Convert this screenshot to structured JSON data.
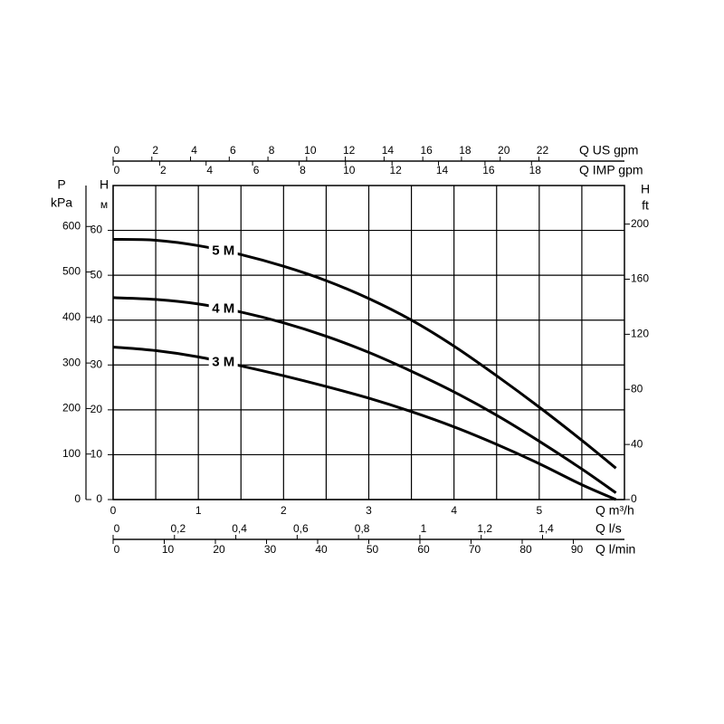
{
  "chart_data": {
    "type": "line",
    "x": [
      0,
      0.5,
      1,
      1.5,
      2,
      2.5,
      3,
      3.5,
      4,
      4.5,
      5,
      5.5,
      5.9
    ],
    "series": [
      {
        "name": "5 M",
        "color": "#000000",
        "values": [
          58,
          57.8,
          56.6,
          54.6,
          52,
          48.8,
          44.8,
          40,
          34.2,
          27.6,
          20.6,
          13.2,
          7
        ]
      },
      {
        "name": "4 M",
        "color": "#000000",
        "values": [
          45,
          44.6,
          43.6,
          41.8,
          39.4,
          36.4,
          32.8,
          28.6,
          24,
          18.8,
          13,
          6.8,
          1.5
        ]
      },
      {
        "name": "3 M",
        "color": "#000000",
        "values": [
          34,
          33.2,
          31.8,
          29.8,
          27.6,
          25.2,
          22.6,
          19.6,
          16.2,
          12.3,
          8,
          3.3,
          0
        ]
      }
    ],
    "xlabel": "Q m³/h",
    "xlim": [
      0,
      6
    ],
    "xticks": [
      0,
      1,
      2,
      3,
      4,
      5
    ],
    "x_minor_ticks": [
      0.5,
      1.5,
      2.5,
      3.5,
      4.5,
      5.5
    ],
    "ylabel": "H",
    "yunit": "м",
    "ylim": [
      0,
      70
    ],
    "yticks": [
      0,
      10,
      20,
      30,
      40,
      50,
      60
    ],
    "grid": true,
    "axes": [
      {
        "position": "top-outer",
        "label": "Q US gpm",
        "lim": [
          0,
          26.42
        ],
        "ticks": [
          0,
          2,
          4,
          6,
          8,
          10,
          12,
          14,
          16,
          18,
          20,
          22
        ]
      },
      {
        "position": "top-inner",
        "label": "Q IMP gpm",
        "lim": [
          0,
          22
        ],
        "ticks": [
          0,
          2,
          4,
          6,
          8,
          10,
          12,
          14,
          16,
          18
        ]
      },
      {
        "position": "bottom-middle",
        "label": "Q l/s",
        "lim": [
          0,
          1.667
        ],
        "ticks": [
          0,
          {
            "value": 0.2,
            "label": "0,2"
          },
          {
            "value": 0.4,
            "label": "0,4"
          },
          {
            "value": 0.6,
            "label": "0,6"
          },
          {
            "value": 0.8,
            "label": "0,8"
          },
          1,
          {
            "value": 1.2,
            "label": "1,2"
          },
          {
            "value": 1.4,
            "label": "1,4"
          }
        ]
      },
      {
        "position": "bottom-outer",
        "label": "Q l/min",
        "lim": [
          0,
          100
        ],
        "ticks": [
          0,
          10,
          20,
          30,
          40,
          50,
          60,
          70,
          80,
          90
        ]
      },
      {
        "position": "left-outer",
        "label": "P",
        "unit": "kPa",
        "lim": [
          0,
          690
        ],
        "ticks": [
          0,
          100,
          200,
          300,
          400,
          500,
          600
        ]
      },
      {
        "position": "right",
        "label": "H",
        "unit": "ft",
        "lim": [
          0,
          228
        ],
        "ticks": [
          0,
          40,
          80,
          120,
          160,
          200
        ]
      }
    ]
  }
}
